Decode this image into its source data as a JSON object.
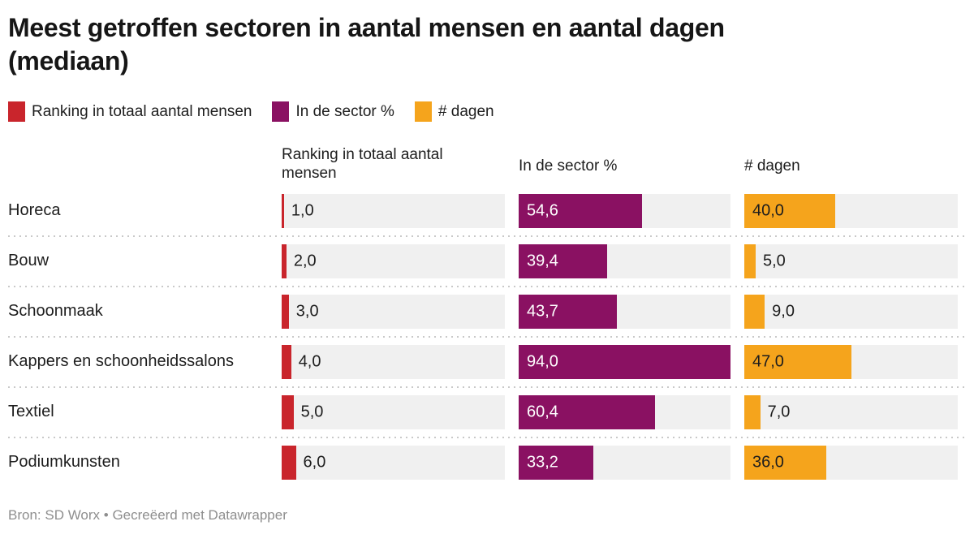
{
  "title_lines": [
    "Meest getroffen sectoren in aantal mensen en aantal dagen",
    "(mediaan)"
  ],
  "legend": {
    "items": [
      {
        "label": "Ranking in totaal aantal mensen",
        "color": "#c9252c"
      },
      {
        "label": "In de sector %",
        "color": "#8a1162"
      },
      {
        "label": "# dagen",
        "color": "#f5a41c"
      }
    ]
  },
  "columns": [
    {
      "header": "Ranking in totaal aantal mensen",
      "bar_color": "#c9252c",
      "value_color_inside": "#ffffff"
    },
    {
      "header": "In de sector %",
      "bar_color": "#8a1162",
      "value_color_inside": "#ffffff"
    },
    {
      "header": "# dagen",
      "bar_color": "#f5a41c",
      "value_color_inside": "#1d1d1d"
    }
  ],
  "chart_data": {
    "type": "bar",
    "orientation": "horizontal",
    "title": "Meest getroffen sectoren in aantal mensen en aantal dagen (mediaan)",
    "categories": [
      "Horeca",
      "Bouw",
      "Schoonmaak",
      "Kappers en schoonheidssalons",
      "Textiel",
      "Podiumkunsten"
    ],
    "series": [
      {
        "name": "Ranking in totaal aantal mensen",
        "values": [
          1.0,
          2.0,
          3.0,
          4.0,
          5.0,
          6.0
        ],
        "display": [
          "1,0",
          "2,0",
          "3,0",
          "4,0",
          "5,0",
          "6,0"
        ]
      },
      {
        "name": "In de sector %",
        "values": [
          54.6,
          39.4,
          43.7,
          94.0,
          60.4,
          33.2
        ],
        "display": [
          "54,6",
          "39,4",
          "43,7",
          "94,0",
          "60,4",
          "33,2"
        ]
      },
      {
        "name": "# dagen",
        "values": [
          40.0,
          5.0,
          9.0,
          47.0,
          7.0,
          36.0
        ],
        "display": [
          "40,0",
          "5,0",
          "9,0",
          "47,0",
          "7,0",
          "36,0"
        ]
      }
    ],
    "axis_max": 94,
    "grid": false,
    "legend_position": "top"
  },
  "footer": "Bron: SD Worx • Gecreëerd met Datawrapper",
  "colors": {
    "text": "#1d1d1d",
    "track": "#f0f0f0",
    "separator": "#c9c9c9",
    "footer_text": "#8e8e8e"
  }
}
